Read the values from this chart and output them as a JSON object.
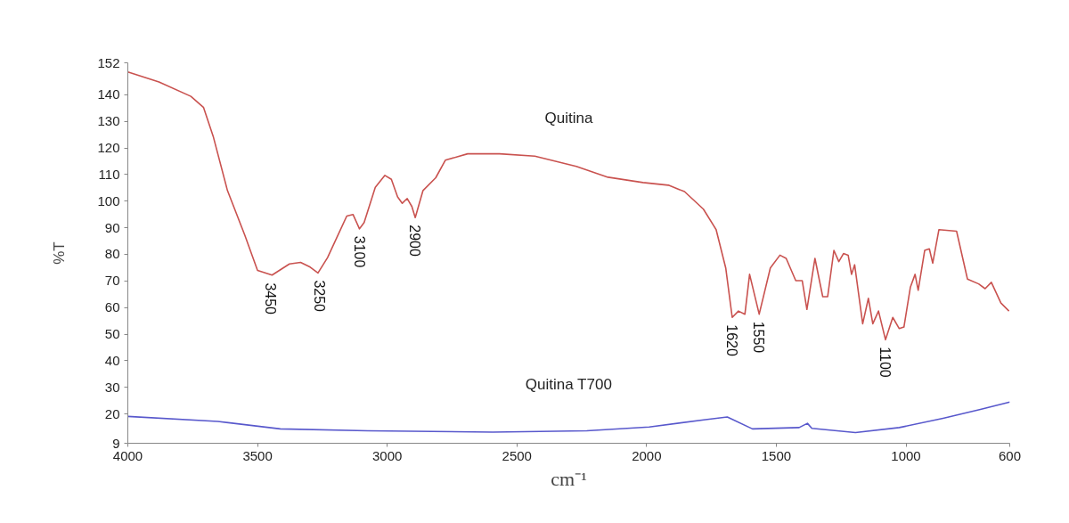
{
  "chart_data": {
    "type": "line",
    "xlabel": "cm⁻¹",
    "ylabel": "%T",
    "xlim": [
      4000,
      600
    ],
    "xticks": [
      4000,
      3500,
      3000,
      2500,
      2000,
      1500,
      1000,
      600
    ],
    "ylim": [
      9,
      152
    ],
    "yticks": [
      9,
      20,
      30,
      40,
      50,
      60,
      70,
      80,
      90,
      100,
      110,
      120,
      130,
      140,
      152
    ],
    "grid": false,
    "legend": false,
    "marker": "none",
    "line_style": "solid",
    "series": [
      {
        "name": "Quitina",
        "color": "#c9524f",
        "x": [
          4000,
          3880,
          3757,
          3708,
          3671,
          3616,
          3549,
          3500,
          3444,
          3377,
          3334,
          3297,
          3267,
          3230,
          3156,
          3132,
          3107,
          3089,
          3046,
          3009,
          2984,
          2960,
          2942,
          2923,
          2905,
          2892,
          2862,
          2813,
          2776,
          2690,
          2567,
          2431,
          2271,
          2149,
          2014,
          1916,
          1854,
          1781,
          1732,
          1695,
          1670,
          1646,
          1621,
          1603,
          1566,
          1523,
          1486,
          1462,
          1425,
          1400,
          1382,
          1351,
          1321,
          1302,
          1278,
          1259,
          1241,
          1223,
          1210,
          1198,
          1167,
          1145,
          1128,
          1106,
          1079,
          1051,
          1026,
          1008,
          983,
          965,
          953,
          928,
          910,
          897,
          873,
          805,
          763,
          720,
          695,
          671,
          634,
          603
        ],
        "values": [
          148.6,
          144.8,
          139.4,
          135.2,
          124.4,
          104,
          87.2,
          74,
          72.2,
          76.4,
          77,
          75.2,
          73,
          78.8,
          94.4,
          95,
          89.6,
          92,
          105.2,
          109.7,
          108.2,
          101.6,
          99.2,
          101,
          98,
          93.8,
          104,
          108.8,
          115.4,
          117.8,
          117.8,
          116.9,
          113.1,
          109,
          107,
          106,
          103.6,
          97,
          89.3,
          74.9,
          56.3,
          58.7,
          57.5,
          72.5,
          57.5,
          74.9,
          79.7,
          78.5,
          70.1,
          70.1,
          59.3,
          78.5,
          64.1,
          64.1,
          81.5,
          77.3,
          80.3,
          79.7,
          72.5,
          76.1,
          53.9,
          63.5,
          53.9,
          58.7,
          47.9,
          56.3,
          52.1,
          52.7,
          67.7,
          72.5,
          66.5,
          81.5,
          82.1,
          76.7,
          89.3,
          88.7,
          70.7,
          68.9,
          67.1,
          69.5,
          61.7,
          58.7
        ]
      },
      {
        "name": "Quitina T700",
        "color": "#5858cc",
        "x": [
          4000,
          3653,
          3412,
          3075,
          2593,
          2231,
          1990,
          1773,
          1689,
          1592,
          1412,
          1380,
          1363,
          1195,
          1026,
          857,
          713,
          600
        ],
        "values": [
          19.1,
          17.2,
          14.4,
          13.7,
          13.2,
          13.7,
          15.1,
          17.9,
          18.9,
          14.4,
          14.9,
          16.5,
          14.6,
          13.0,
          14.9,
          18.4,
          21.7,
          24.5
        ]
      }
    ],
    "annotations": [
      {
        "text": "3450",
        "x": 3450,
        "y": 72
      },
      {
        "text": "3250",
        "x": 3260,
        "y": 73
      },
      {
        "text": "3100",
        "x": 3107,
        "y": 89.6
      },
      {
        "text": "2900",
        "x": 2892,
        "y": 93.8
      },
      {
        "text": "1620",
        "x": 1670,
        "y": 56.3
      },
      {
        "text": "1550",
        "x": 1566,
        "y": 57.5
      },
      {
        "text": "1100",
        "x": 1079,
        "y": 47.9
      }
    ]
  }
}
